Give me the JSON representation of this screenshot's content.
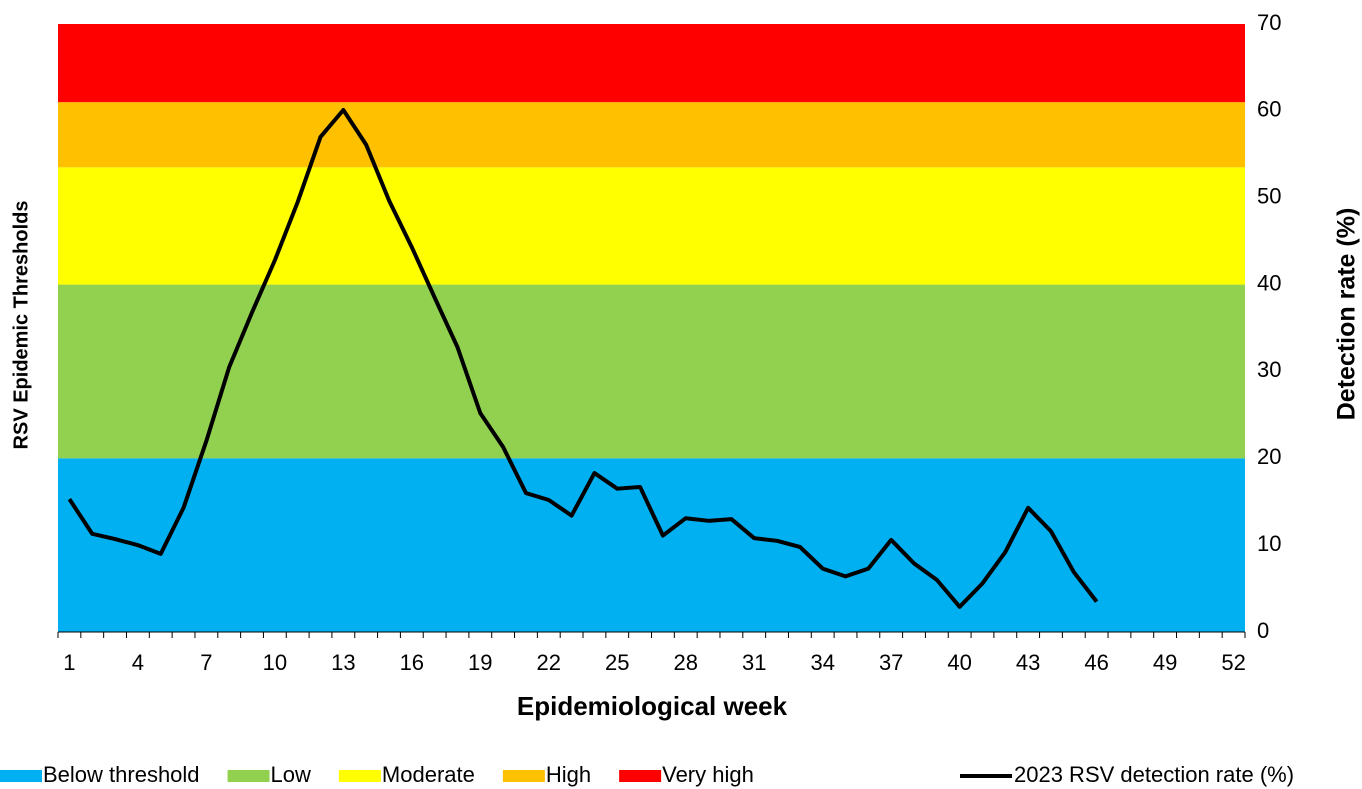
{
  "chart_data": {
    "type": "line",
    "x_label": "Epidemiological week",
    "y_label": "Detection rate (%)",
    "band_label": "RSV Epidemic Thresholds",
    "y_axis_side": "right",
    "legend": "bottom",
    "categories": [
      "1",
      null,
      null,
      "4",
      null,
      null,
      "7",
      null,
      null,
      "10",
      null,
      null,
      "13",
      null,
      null,
      "16",
      null,
      null,
      "19",
      null,
      null,
      "22",
      null,
      null,
      "25",
      null,
      null,
      "28",
      null,
      null,
      "31",
      null,
      null,
      "34",
      null,
      null,
      "37",
      null,
      null,
      "40",
      null,
      null,
      "43",
      null,
      null,
      "46",
      null,
      null,
      "49",
      null,
      null,
      "52"
    ],
    "thresholds": [
      {
        "name": "Below threshold",
        "color": "#00b0f0",
        "from": 0,
        "to": 20
      },
      {
        "name": "Low",
        "color": "#92d050",
        "from": 20,
        "to": 40
      },
      {
        "name": "Moderate",
        "color": "#ffff00",
        "from": 40,
        "to": 53.5
      },
      {
        "name": "High",
        "color": "#ffc000",
        "from": 53.5,
        "to": 61
      },
      {
        "name": "Very high",
        "color": "#ff0000",
        "from": 61,
        "to": 70
      }
    ],
    "series": [
      {
        "name": "2023 RSV detection rate (%)",
        "color": "#000000",
        "values": [
          15.3,
          11.3,
          10.7,
          10.0,
          9.0,
          14.3,
          22.0,
          30.5,
          36.8,
          42.8,
          49.5,
          57.0,
          60.1,
          56.1,
          49.7,
          44.3,
          38.5,
          32.8,
          25.2,
          21.3,
          16.0,
          15.2,
          13.4,
          18.3,
          16.5,
          16.7,
          11.1,
          13.1,
          12.8,
          13.0,
          10.8,
          10.5,
          9.8,
          7.3,
          6.4,
          7.3,
          10.6,
          7.9,
          6.0,
          2.9,
          5.6,
          9.2,
          14.3,
          11.6,
          6.9,
          3.5,
          null,
          null,
          null,
          null,
          null,
          null
        ]
      }
    ],
    "ylim": [
      0,
      70
    ],
    "yticks": [
      0,
      10,
      20,
      30,
      40,
      50,
      60,
      70
    ]
  }
}
